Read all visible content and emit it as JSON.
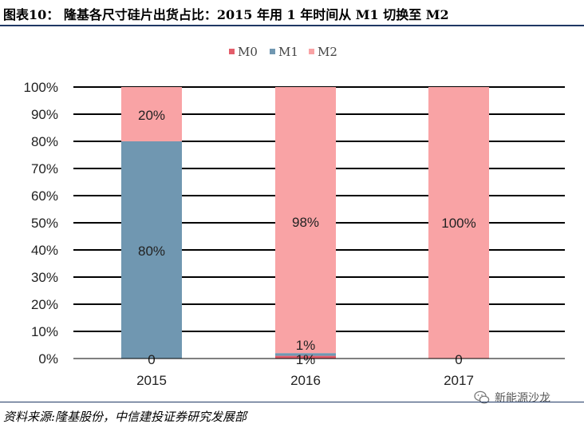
{
  "header": {
    "title": "图表10： 隆基各尺寸硅片出货占比：2015 年用 1 年时间从 M1 切换至 M2"
  },
  "footer": {
    "source": "资料来源:隆基股份，中信建投证券研究发展部"
  },
  "watermark": {
    "text": "新能源沙龙",
    "icon": "wechat-icon"
  },
  "chart_data": {
    "type": "bar",
    "stacked": true,
    "categories": [
      "2015",
      "2016",
      "2017"
    ],
    "series": [
      {
        "name": "M0",
        "color": "#e35d6a",
        "values": [
          0,
          1,
          0
        ],
        "labels": [
          "0",
          "1%",
          "0"
        ]
      },
      {
        "name": "M1",
        "color": "#7097b1",
        "values": [
          80,
          1,
          0
        ],
        "labels": [
          "80%",
          "1%",
          ""
        ]
      },
      {
        "name": "M2",
        "color": "#f9a3a5",
        "values": [
          20,
          98,
          100
        ],
        "labels": [
          "20%",
          "98%",
          "100%"
        ]
      }
    ],
    "ylim": [
      0,
      100
    ],
    "yticks": [
      "0%",
      "10%",
      "20%",
      "30%",
      "40%",
      "50%",
      "60%",
      "70%",
      "80%",
      "90%",
      "100%"
    ],
    "grid": true,
    "legend_position": "top-center"
  }
}
